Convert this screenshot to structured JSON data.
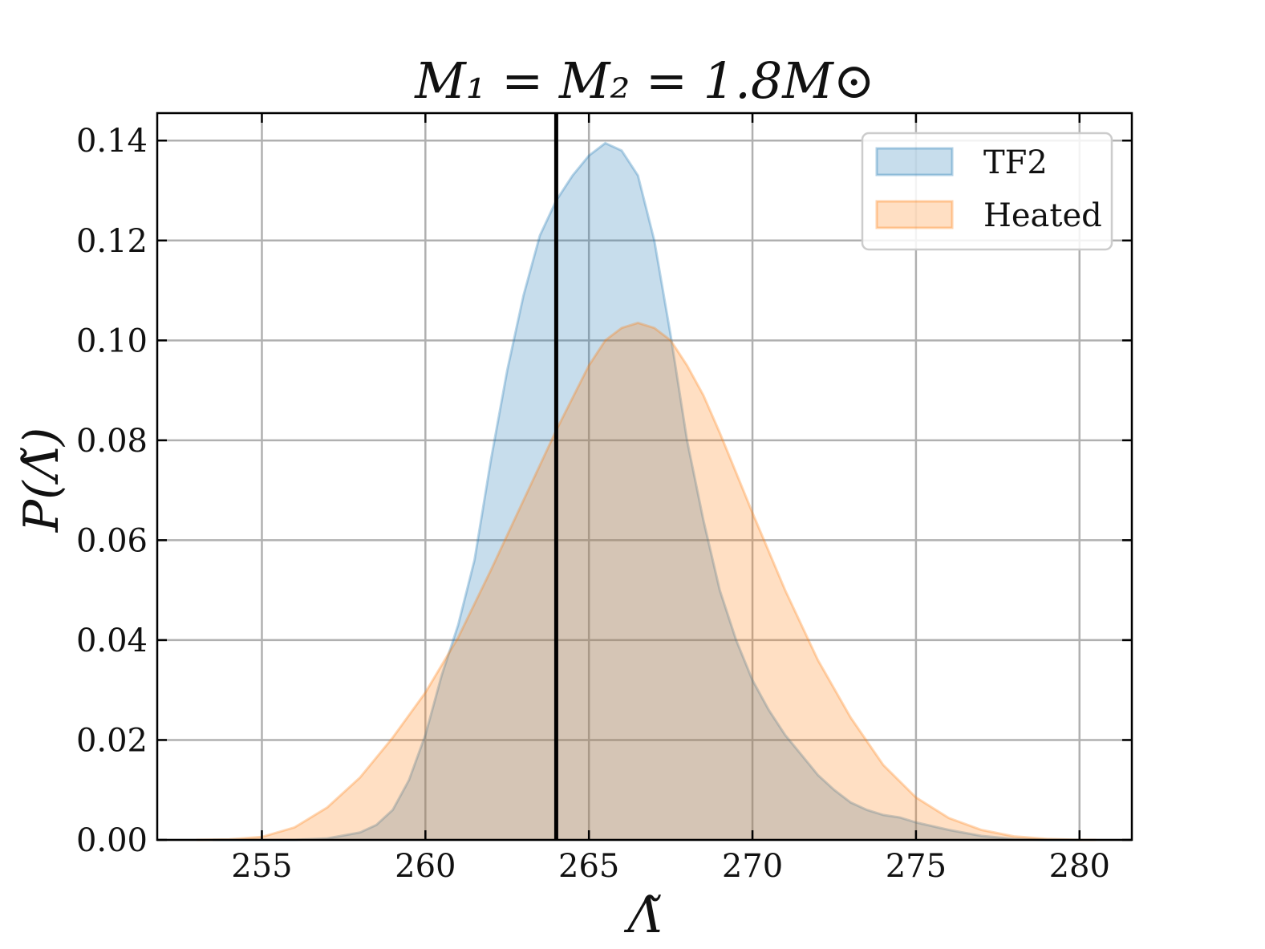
{
  "chart_data": {
    "type": "area",
    "title": "M₁ = M₂ = 1.8M⊙",
    "xlabel": "Λ̃",
    "ylabel": "P(Λ̃)",
    "xlim": [
      251.8,
      281.6
    ],
    "ylim": [
      0.0,
      0.1455
    ],
    "x_ticks": [
      255,
      260,
      265,
      270,
      275,
      280
    ],
    "x_tick_labels": [
      "255",
      "260",
      "265",
      "270",
      "275",
      "280"
    ],
    "y_ticks": [
      0.0,
      0.02,
      0.04,
      0.06,
      0.08,
      0.1,
      0.12,
      0.14
    ],
    "y_tick_labels": [
      "0.00",
      "0.02",
      "0.04",
      "0.06",
      "0.08",
      "0.10",
      "0.12",
      "0.14"
    ],
    "grid": true,
    "legend_position": "top-right",
    "reference_line": {
      "x": 264.0,
      "color": "#000000"
    },
    "series": [
      {
        "name": "TF2",
        "fill": "#1f77b4",
        "fill_opacity": 0.25,
        "line": "#1f77b4",
        "x": [
          253.5,
          255.0,
          256.0,
          257.0,
          258.0,
          258.5,
          259.0,
          259.5,
          260.0,
          260.5,
          261.0,
          261.5,
          262.0,
          262.5,
          263.0,
          263.5,
          264.0,
          264.5,
          265.0,
          265.5,
          266.0,
          266.5,
          267.0,
          267.5,
          268.0,
          268.5,
          269.0,
          269.5,
          270.0,
          270.5,
          271.0,
          271.5,
          272.0,
          272.5,
          273.0,
          273.5,
          274.0,
          274.5,
          275.0,
          276.0,
          277.0,
          278.0,
          279.0,
          280.0
        ],
        "y": [
          0.0,
          0.0,
          0.0,
          0.0003,
          0.0015,
          0.003,
          0.006,
          0.012,
          0.021,
          0.033,
          0.043,
          0.056,
          0.076,
          0.094,
          0.109,
          0.121,
          0.128,
          0.133,
          0.137,
          0.1395,
          0.138,
          0.133,
          0.12,
          0.101,
          0.08,
          0.064,
          0.05,
          0.04,
          0.032,
          0.026,
          0.021,
          0.017,
          0.013,
          0.01,
          0.0075,
          0.006,
          0.005,
          0.0045,
          0.0035,
          0.002,
          0.0008,
          0.0002,
          0.0,
          0.0
        ]
      },
      {
        "name": "Heated",
        "fill": "#ff7f0e",
        "fill_opacity": 0.25,
        "line": "#ff7f0e",
        "x": [
          253.0,
          254.0,
          255.0,
          256.0,
          257.0,
          258.0,
          259.0,
          260.0,
          261.0,
          262.0,
          263.0,
          264.0,
          264.5,
          265.0,
          265.5,
          266.0,
          266.5,
          267.0,
          267.5,
          268.0,
          268.5,
          269.0,
          269.5,
          270.0,
          271.0,
          272.0,
          273.0,
          274.0,
          275.0,
          276.0,
          277.0,
          278.0,
          279.0,
          280.0,
          280.5
        ],
        "y": [
          0.0,
          0.0001,
          0.0006,
          0.0025,
          0.0065,
          0.0125,
          0.0205,
          0.0295,
          0.0405,
          0.054,
          0.068,
          0.082,
          0.0885,
          0.095,
          0.1,
          0.1025,
          0.1035,
          0.1025,
          0.1,
          0.095,
          0.089,
          0.0815,
          0.0735,
          0.0655,
          0.05,
          0.036,
          0.0245,
          0.015,
          0.0085,
          0.0044,
          0.002,
          0.0007,
          0.0002,
          0.0,
          0.0
        ]
      }
    ]
  }
}
